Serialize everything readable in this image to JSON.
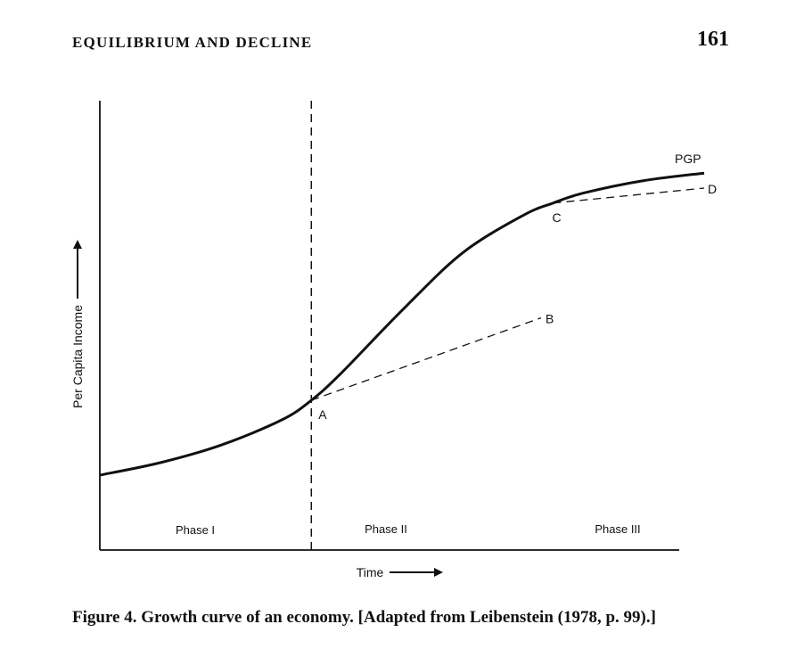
{
  "header": {
    "running_title": "EQUILIBRIUM AND DECLINE",
    "page_number": "161"
  },
  "chart_data": {
    "type": "line",
    "title": "Growth curve of an economy",
    "xlabel": "Time",
    "ylabel": "Per Capita Income",
    "axis_ticks": "none",
    "phases": [
      "Phase I",
      "Phase II",
      "Phase III"
    ],
    "curve_label": "PGP",
    "series": [
      {
        "name": "PGP",
        "style": "solid",
        "x": [
          0,
          10,
          20,
          30,
          35,
          40,
          50,
          60,
          70,
          75,
          80,
          90,
          100
        ],
        "y": [
          0,
          5,
          12,
          22,
          30,
          41,
          66,
          89,
          104,
          109,
          113,
          118,
          121
        ]
      },
      {
        "name": "A-B",
        "style": "dashed",
        "x": [
          35,
          73
        ],
        "y": [
          30,
          63
        ]
      },
      {
        "name": "C-D",
        "style": "dashed",
        "x": [
          75,
          100
        ],
        "y": [
          109,
          115
        ]
      }
    ],
    "points": [
      {
        "label": "A",
        "x": 35,
        "y": 30
      },
      {
        "label": "B",
        "x": 73,
        "y": 63
      },
      {
        "label": "C",
        "x": 75,
        "y": 109
      },
      {
        "label": "D",
        "x": 100,
        "y": 115
      }
    ],
    "phase_boundary_x": 35,
    "xlim": [
      0,
      100
    ],
    "ylim": [
      -30,
      150
    ]
  },
  "caption": "Figure 4. Growth curve of an economy. [Adapted from Leibenstein (1978, p. 99).]"
}
